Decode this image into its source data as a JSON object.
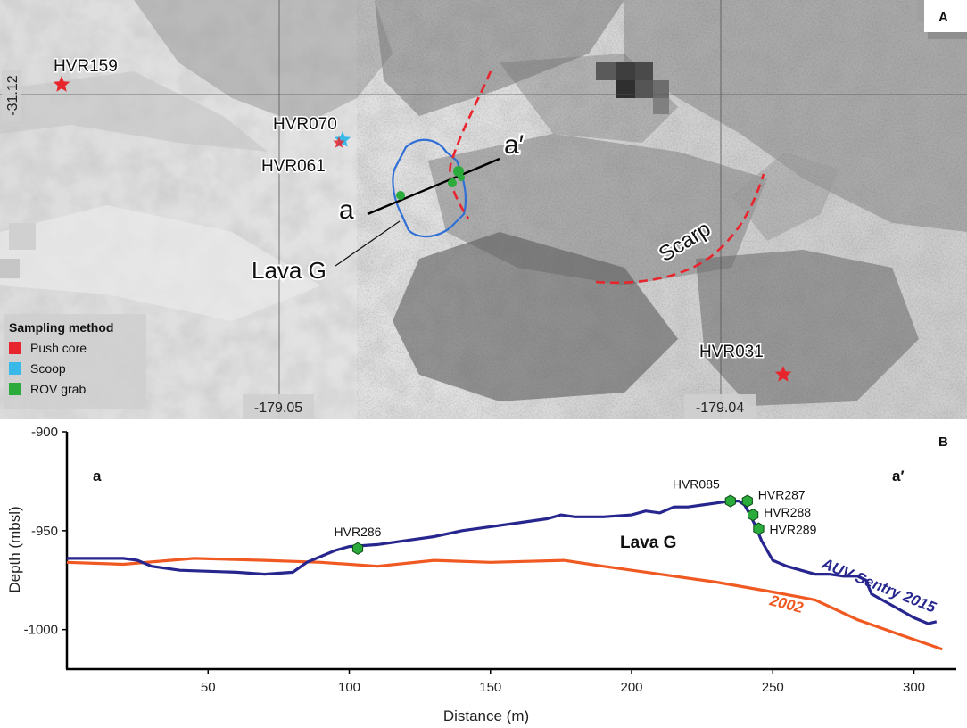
{
  "panel_a": {
    "label": "A",
    "lat_label": "-31.12",
    "lon_labels": [
      "-179.05",
      "-179.04"
    ],
    "samples": [
      {
        "name": "HVR159",
        "method": "push",
        "color": "#e8252d"
      },
      {
        "name": "HVR070",
        "method": "scoop",
        "color": "#39b8ea"
      },
      {
        "name": "HVR061",
        "method": "push",
        "color": "#e8252d"
      },
      {
        "name": "HVR031",
        "method": "push",
        "color": "#e8252d"
      }
    ],
    "profile_ends": {
      "start": "a",
      "end": "a′"
    },
    "flow_label": "Lava G",
    "scarp_label": "Scarp",
    "legend": {
      "title": "Sampling method",
      "items": [
        {
          "label": "Push core",
          "color": "#e8252d"
        },
        {
          "label": "Scoop",
          "color": "#39b8ea"
        },
        {
          "label": "ROV grab",
          "color": "#2bab3c"
        }
      ]
    }
  },
  "panel_b": {
    "label": "B",
    "end_labels": {
      "start": "a",
      "end": "a′"
    },
    "region_label": "Lava G"
  },
  "chart_data": {
    "type": "line",
    "xlabel": "Distance (m)",
    "ylabel": "Depth (mbsl)",
    "xlim": [
      0,
      315
    ],
    "ylim": [
      -1020,
      -900
    ],
    "xticks": [
      50,
      100,
      150,
      200,
      250,
      300
    ],
    "yticks": [
      -900,
      -950,
      -1000
    ],
    "series": [
      {
        "name": "AUV Sentry 2015",
        "color": "#27268f",
        "x": [
          0,
          10,
          20,
          25,
          30,
          40,
          60,
          70,
          80,
          85,
          90,
          95,
          100,
          110,
          120,
          130,
          140,
          150,
          160,
          170,
          175,
          180,
          190,
          200,
          205,
          210,
          215,
          220,
          225,
          230,
          235,
          238,
          240,
          242,
          244,
          246,
          248,
          250,
          255,
          260,
          265,
          270,
          275,
          280,
          283,
          285,
          290,
          295,
          300,
          305,
          308
        ],
        "y": [
          -964,
          -964,
          -964,
          -965,
          -968,
          -970,
          -971,
          -972,
          -971,
          -966,
          -963,
          -960,
          -958,
          -957,
          -955,
          -953,
          -950,
          -948,
          -946,
          -944,
          -942,
          -943,
          -943,
          -942,
          -940,
          -941,
          -938,
          -938,
          -937,
          -936,
          -935,
          -935,
          -937,
          -942,
          -948,
          -955,
          -960,
          -965,
          -968,
          -970,
          -972,
          -972,
          -973,
          -973,
          -975,
          -982,
          -986,
          -990,
          -994,
          -997,
          -996
        ]
      },
      {
        "name": "2002",
        "color": "#f05a22",
        "x": [
          0,
          20,
          45,
          70,
          90,
          110,
          130,
          150,
          176,
          190,
          210,
          230,
          250,
          265,
          280,
          300,
          310
        ],
        "y": [
          -966,
          -967,
          -964,
          -965,
          -966,
          -968,
          -965,
          -966,
          -965,
          -968,
          -972,
          -976,
          -981,
          -985,
          -995,
          -1005,
          -1010
        ]
      }
    ],
    "markers": [
      {
        "label": "HVR286",
        "x": 103,
        "y": -959
      },
      {
        "label": "HVR085",
        "x": 235,
        "y": -935
      },
      {
        "label": "HVR287",
        "x": 241,
        "y": -935
      },
      {
        "label": "HVR288",
        "x": 243,
        "y": -942
      },
      {
        "label": "HVR289",
        "x": 245,
        "y": -949
      }
    ],
    "marker_color": "#2bab3c"
  }
}
